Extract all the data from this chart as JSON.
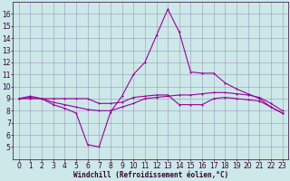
{
  "xlabel": "Windchill (Refroidissement éolien,°C)",
  "xlim": [
    -0.5,
    23.5
  ],
  "ylim": [
    4,
    17
  ],
  "yticks": [
    5,
    6,
    7,
    8,
    9,
    10,
    11,
    12,
    13,
    14,
    15,
    16
  ],
  "xticks": [
    0,
    1,
    2,
    3,
    4,
    5,
    6,
    7,
    8,
    9,
    10,
    11,
    12,
    13,
    14,
    15,
    16,
    17,
    18,
    19,
    20,
    21,
    22,
    23
  ],
  "bg_color": "#cce8e8",
  "grid_color": "#9999bb",
  "line_color": "#990099",
  "line1_x": [
    0,
    1,
    2,
    3,
    4,
    5,
    6,
    7,
    8,
    9,
    10,
    11,
    12,
    13,
    14,
    15,
    16,
    17,
    18,
    19,
    20,
    21,
    22,
    23
  ],
  "line1_y": [
    9.0,
    9.2,
    9.0,
    8.5,
    8.2,
    7.8,
    5.2,
    5.0,
    7.9,
    9.2,
    11.0,
    12.0,
    14.2,
    16.4,
    14.5,
    11.2,
    11.1,
    11.1,
    10.3,
    9.8,
    9.4,
    9.0,
    8.3,
    7.8
  ],
  "line2_x": [
    0,
    1,
    2,
    3,
    4,
    5,
    6,
    7,
    8,
    9,
    10,
    11,
    12,
    13,
    14,
    15,
    16,
    17,
    18,
    19,
    20,
    21,
    22,
    23
  ],
  "line2_y": [
    9.0,
    9.1,
    9.0,
    8.7,
    8.5,
    8.3,
    8.1,
    8.0,
    8.0,
    8.3,
    8.6,
    9.0,
    9.1,
    9.2,
    9.3,
    9.3,
    9.4,
    9.5,
    9.5,
    9.4,
    9.3,
    9.1,
    8.6,
    8.0
  ],
  "line3_x": [
    0,
    1,
    2,
    3,
    4,
    5,
    6,
    7,
    8,
    9,
    10,
    11,
    12,
    13,
    14,
    15,
    16,
    17,
    18,
    19,
    20,
    21,
    22,
    23
  ],
  "line3_y": [
    9.0,
    9.0,
    9.0,
    9.0,
    9.0,
    9.0,
    9.0,
    8.6,
    8.6,
    8.7,
    9.1,
    9.2,
    9.3,
    9.3,
    8.5,
    8.5,
    8.5,
    9.0,
    9.1,
    9.0,
    8.9,
    8.8,
    8.3,
    7.8
  ],
  "tick_fontsize": 5.5,
  "xlabel_fontsize": 5.5,
  "lw": 0.8,
  "marker_size": 2.0
}
